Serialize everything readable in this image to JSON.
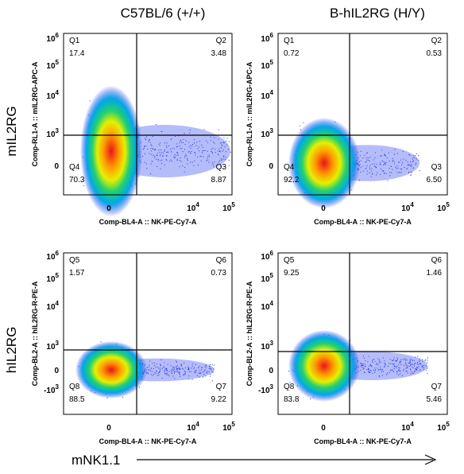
{
  "columns": [
    "C57BL/6 (+/+)",
    "B-hIL2RG (H/Y)"
  ],
  "rows": [
    "mIL2RG",
    "hIL2RG"
  ],
  "x_axis_title": "mNK1.1",
  "panels": [
    {
      "x_label": "Comp-BL4-A :: NK-PE-Cy7-A",
      "y_label": "Comp-RL1-A :: mIL2RG-APC-A",
      "quadrants": [
        {
          "label": "Q1",
          "value": "17.4"
        },
        {
          "label": "Q2",
          "value": "3.48"
        },
        {
          "label": "Q3",
          "value": "8.87"
        },
        {
          "label": "Q4",
          "value": "70.3"
        }
      ]
    },
    {
      "x_label": "Comp-BL4-A :: NK-PE-Cy7-A",
      "y_label": "Comp-RL1-A :: mIL2RG-APC-A",
      "quadrants": [
        {
          "label": "Q1",
          "value": "0.72"
        },
        {
          "label": "Q2",
          "value": "0.53"
        },
        {
          "label": "Q3",
          "value": "6.50"
        },
        {
          "label": "Q4",
          "value": "92.2"
        }
      ]
    },
    {
      "x_label": "Comp-BL4-A :: NK-PE-Cy7-A",
      "y_label": "Comp-BL2-A :: hIL2RG-R-PE-A",
      "quadrants": [
        {
          "label": "Q5",
          "value": "1.57"
        },
        {
          "label": "Q6",
          "value": "0.73"
        },
        {
          "label": "Q7",
          "value": "9.22"
        },
        {
          "label": "Q8",
          "value": "88.5"
        }
      ]
    },
    {
      "x_label": "Comp-BL4-A :: NK-PE-Cy7-A",
      "y_label": "Comp-BL2-A :: hIL2RG-R-PE-A",
      "quadrants": [
        {
          "label": "Q5",
          "value": "9.25"
        },
        {
          "label": "Q6",
          "value": "1.46"
        },
        {
          "label": "Q7",
          "value": "5.46"
        },
        {
          "label": "Q8",
          "value": "83.8"
        }
      ]
    }
  ],
  "y_ticks_top": [
    {
      "base": "10",
      "exp": "6"
    },
    {
      "base": "10",
      "exp": "5"
    },
    {
      "base": "10",
      "exp": "4"
    },
    {
      "base": "10",
      "exp": "3"
    },
    {
      "base": "0"
    }
  ],
  "y_ticks_bottom": [
    {
      "base": "10",
      "exp": "6"
    },
    {
      "base": "10",
      "exp": "5"
    },
    {
      "base": "10",
      "exp": "4"
    },
    {
      "base": "10",
      "exp": "3"
    },
    {
      "base": "0"
    },
    {
      "base": "-10",
      "exp": "3"
    }
  ],
  "x_ticks": [
    {
      "base": "0"
    },
    {
      "base": "10",
      "exp": "4"
    },
    {
      "base": "10",
      "exp": "5"
    }
  ]
}
